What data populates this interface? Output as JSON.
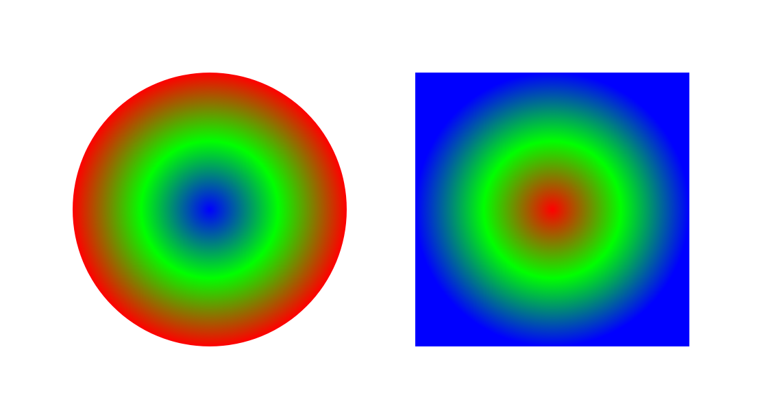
{
  "shapes": [
    {
      "kind": "circle",
      "gradient": "radial",
      "stops": [
        {
          "offset": 0,
          "color": "#0000ff"
        },
        {
          "offset": 0.5,
          "color": "#00ff00"
        },
        {
          "offset": 1,
          "color": "#ff0000"
        }
      ]
    },
    {
      "kind": "square",
      "gradient": "radial",
      "stops": [
        {
          "offset": 0,
          "color": "#ff0000"
        },
        {
          "offset": 0.5,
          "color": "#00ff00"
        },
        {
          "offset": 1,
          "color": "#0000ff"
        }
      ]
    }
  ]
}
